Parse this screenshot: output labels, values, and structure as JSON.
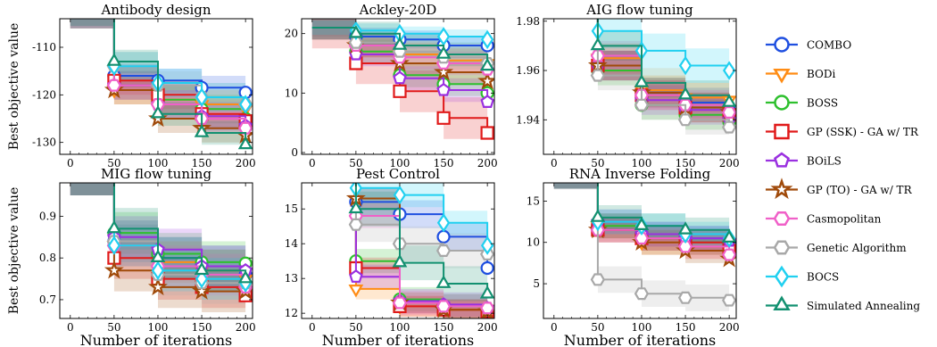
{
  "figure": {
    "xlabel": "Number of iterations",
    "ylabel": "Best objective value"
  },
  "legend": [
    {
      "name": "COMBO",
      "color": "#1f4fe0",
      "marker": "circle"
    },
    {
      "name": "BODi",
      "color": "#ff8c14",
      "marker": "triangle-down"
    },
    {
      "name": "BOSS",
      "color": "#2ec02e",
      "marker": "circle"
    },
    {
      "name": "GP (SSK) - GA w/ TR",
      "color": "#e01a1a",
      "marker": "square"
    },
    {
      "name": "BOiLS",
      "color": "#9a30e0",
      "marker": "pentagon"
    },
    {
      "name": "GP (TO) - GA w/ TR",
      "color": "#a04a0a",
      "marker": "star"
    },
    {
      "name": "Casmopolitan",
      "color": "#f060c8",
      "marker": "hexagon"
    },
    {
      "name": "Genetic Algorithm",
      "color": "#a8a8a8",
      "marker": "hexagon"
    },
    {
      "name": "BOCS",
      "color": "#20d0f0",
      "marker": "diamond"
    },
    {
      "name": "Simulated Annealing",
      "color": "#129070",
      "marker": "triangle-up"
    }
  ],
  "chart_data": [
    {
      "type": "line",
      "title": "Antibody design",
      "x": [
        0,
        50,
        100,
        150,
        200
      ],
      "xticks": [
        0,
        50,
        100,
        150,
        200
      ],
      "xlim": [
        -12,
        208
      ],
      "ylim": [
        -132.5,
        -104
      ],
      "yticks": [
        -110,
        -120,
        -130
      ],
      "show_ylabel": true,
      "series": [
        {
          "name": "COMBO",
          "values": [
            -103,
            -116,
            -117,
            -118.5,
            -119.5
          ],
          "band": 2.5
        },
        {
          "name": "BODi",
          "values": [
            -103,
            -119,
            -121,
            -122,
            -123
          ],
          "band": 3
        },
        {
          "name": "BOSS",
          "values": [
            -103,
            -118,
            -121,
            -123,
            -125
          ],
          "band": 3
        },
        {
          "name": "GP (SSK) - GA w/ TR",
          "values": [
            -103,
            -117,
            -120,
            -124,
            -125.5
          ],
          "band": 3
        },
        {
          "name": "BOiLS",
          "values": [
            -103,
            -118,
            -122,
            -124.5,
            -126.5
          ],
          "band": 3
        },
        {
          "name": "GP (TO) - GA w/ TR",
          "values": [
            -103,
            -119,
            -125,
            -127,
            -128.5
          ],
          "band": 3
        },
        {
          "name": "Casmopolitan",
          "values": [
            -103,
            -118,
            -122,
            -125,
            -127
          ],
          "band": 3
        },
        {
          "name": "Genetic Algorithm",
          "values": [
            -103,
            -114,
            -118,
            -120.5,
            -122
          ],
          "band": 3
        },
        {
          "name": "BOCS",
          "values": [
            -103,
            -114,
            -117.5,
            -120.5,
            -122
          ],
          "band": 3
        },
        {
          "name": "Simulated Annealing",
          "values": [
            -103,
            -113,
            -124,
            -128,
            -130.5
          ],
          "band": 2.5
        }
      ]
    },
    {
      "type": "line",
      "title": "Ackley-20D",
      "x": [
        0,
        50,
        100,
        150,
        200
      ],
      "xticks": [
        0,
        50,
        100,
        150,
        200
      ],
      "xlim": [
        -12,
        208
      ],
      "ylim": [
        -0.3,
        22.5
      ],
      "yticks": [
        0,
        10,
        20
      ],
      "show_ylabel": false,
      "series": [
        {
          "name": "COMBO",
          "values": [
            21,
            19.5,
            19,
            18,
            18
          ],
          "band": 1.5
        },
        {
          "name": "BODi",
          "values": [
            21,
            18,
            16.5,
            15.5,
            15
          ],
          "band": 2
        },
        {
          "name": "BOSS",
          "values": [
            21,
            17,
            13,
            11.5,
            10
          ],
          "band": 2
        },
        {
          "name": "GP (SSK) - GA w/ TR",
          "values": [
            21,
            15,
            10.3,
            5.8,
            3.3
          ],
          "band": 3.5
        },
        {
          "name": "BOiLS",
          "values": [
            21,
            16.5,
            12.5,
            10.5,
            8.5
          ],
          "band": 2
        },
        {
          "name": "GP (TO) - GA w/ TR",
          "values": [
            21,
            18,
            15,
            13.5,
            12
          ],
          "band": 2
        },
        {
          "name": "Casmopolitan",
          "values": [
            21,
            18,
            16,
            15,
            14
          ],
          "band": 2
        },
        {
          "name": "Genetic Algorithm",
          "values": [
            21,
            18.5,
            17,
            16,
            15
          ],
          "band": 2
        },
        {
          "name": "BOCS",
          "values": [
            21,
            20.5,
            20,
            19.5,
            19
          ],
          "band": 1.2
        },
        {
          "name": "Simulated Annealing",
          "values": [
            21,
            20,
            18,
            16.5,
            14.5
          ],
          "band": 2
        }
      ]
    },
    {
      "type": "line",
      "title": "AIG flow tuning",
      "x": [
        0,
        50,
        100,
        150,
        200
      ],
      "xticks": [
        0,
        50,
        100,
        150,
        200
      ],
      "xlim": [
        -12,
        208
      ],
      "ylim": [
        1.926,
        1.981
      ],
      "yticks": [
        1.94,
        1.96,
        1.98
      ],
      "show_ylabel": false,
      "series": [
        {
          "name": "COMBO",
          "values": [
            1.995,
            1.962,
            1.951,
            1.947,
            1.944
          ],
          "band": 0.006
        },
        {
          "name": "BODi",
          "values": [
            1.995,
            1.965,
            1.952,
            1.949,
            1.948
          ],
          "band": 0.006
        },
        {
          "name": "BOSS",
          "values": [
            1.995,
            1.96,
            1.946,
            1.942,
            1.939
          ],
          "band": 0.006
        },
        {
          "name": "GP (SSK) - GA w/ TR",
          "values": [
            1.995,
            1.962,
            1.95,
            1.945,
            1.942
          ],
          "band": 0.006
        },
        {
          "name": "BOiLS",
          "values": [
            1.995,
            1.962,
            1.948,
            1.944,
            1.94
          ],
          "band": 0.006
        },
        {
          "name": "GP (TO) - GA w/ TR",
          "values": [
            1.995,
            1.962,
            1.951,
            1.945,
            1.943
          ],
          "band": 0.006
        },
        {
          "name": "Casmopolitan",
          "values": [
            1.995,
            1.966,
            1.95,
            1.946,
            1.943
          ],
          "band": 0.006
        },
        {
          "name": "Genetic Algorithm",
          "values": [
            1.995,
            1.958,
            1.946,
            1.94,
            1.937
          ],
          "band": 0.006
        },
        {
          "name": "BOCS",
          "values": [
            1.995,
            1.976,
            1.968,
            1.962,
            1.96
          ],
          "band": 0.007
        },
        {
          "name": "Simulated Annealing",
          "values": [
            1.995,
            1.97,
            1.955,
            1.95,
            1.947
          ],
          "band": 0.006
        }
      ]
    },
    {
      "type": "line",
      "title": "MIG flow tuning",
      "x": [
        0,
        50,
        100,
        150,
        200
      ],
      "xticks": [
        0,
        50,
        100,
        150,
        200
      ],
      "xlim": [
        -12,
        208
      ],
      "ylim": [
        0.655,
        0.98
      ],
      "yticks": [
        0.7,
        0.8,
        0.9
      ],
      "show_ylabel": true,
      "series": [
        {
          "name": "COMBO",
          "values": [
            1.0,
            0.84,
            0.8,
            0.78,
            0.76
          ],
          "band": 0.05
        },
        {
          "name": "BODi",
          "values": [
            1.0,
            0.83,
            0.79,
            0.77,
            0.75
          ],
          "band": 0.05
        },
        {
          "name": "BOSS",
          "values": [
            1.0,
            0.86,
            0.81,
            0.79,
            0.787
          ],
          "band": 0.05
        },
        {
          "name": "GP (SSK) - GA w/ TR",
          "values": [
            1.0,
            0.8,
            0.75,
            0.73,
            0.71
          ],
          "band": 0.05
        },
        {
          "name": "BOiLS",
          "values": [
            1.0,
            0.85,
            0.82,
            0.78,
            0.77
          ],
          "band": 0.05
        },
        {
          "name": "GP (TO) - GA w/ TR",
          "values": [
            1.0,
            0.77,
            0.73,
            0.72,
            0.72
          ],
          "band": 0.05
        },
        {
          "name": "Casmopolitan",
          "values": [
            1.0,
            0.83,
            0.78,
            0.76,
            0.73
          ],
          "band": 0.05
        },
        {
          "name": "Genetic Algorithm",
          "values": [
            1.0,
            0.84,
            0.76,
            0.74,
            0.74
          ],
          "band": 0.05
        },
        {
          "name": "BOCS",
          "values": [
            1.0,
            0.83,
            0.77,
            0.75,
            0.74
          ],
          "band": 0.05
        },
        {
          "name": "Simulated Annealing",
          "values": [
            1.0,
            0.87,
            0.8,
            0.77,
            0.75
          ],
          "band": 0.05
        }
      ]
    },
    {
      "type": "line",
      "title": "Pest Control",
      "x": [
        0,
        50,
        100,
        150,
        200
      ],
      "xticks": [
        0,
        50,
        100,
        150,
        200
      ],
      "xlim": [
        -12,
        208
      ],
      "ylim": [
        11.85,
        15.75
      ],
      "yticks": [
        12,
        13,
        14,
        15
      ],
      "show_ylabel": false,
      "series": [
        {
          "name": "COMBO",
          "values": [
            16.5,
            15.2,
            14.85,
            14.2,
            13.3
          ],
          "band": 0.4
        },
        {
          "name": "BODi",
          "values": [
            16.5,
            12.7,
            12.2,
            12.1,
            12.05
          ],
          "band": 0.3
        },
        {
          "name": "BOSS",
          "values": [
            16.5,
            13.5,
            12.4,
            12.2,
            12.1
          ],
          "band": 0.35
        },
        {
          "name": "GP (SSK) - GA w/ TR",
          "values": [
            16.5,
            13.3,
            12.2,
            12.1,
            12.05
          ],
          "band": 0.3
        },
        {
          "name": "BOiLS",
          "values": [
            16.5,
            13.05,
            12.35,
            12.25,
            12.15
          ],
          "band": 0.35
        },
        {
          "name": "GP (TO) - GA w/ TR",
          "values": [
            16.5,
            15.3,
            12.3,
            12.1,
            12.05
          ],
          "band": 0.3
        },
        {
          "name": "Casmopolitan",
          "values": [
            16.5,
            14.8,
            12.3,
            12.2,
            12.15
          ],
          "band": 0.35
        },
        {
          "name": "Genetic Algorithm",
          "values": [
            16.5,
            14.55,
            14.0,
            13.8,
            13.7
          ],
          "band": 0.5
        },
        {
          "name": "BOCS",
          "values": [
            16.5,
            15.6,
            15.4,
            14.6,
            13.95
          ],
          "band": 0.35
        },
        {
          "name": "Simulated Annealing",
          "values": [
            16.5,
            15.0,
            13.45,
            12.85,
            12.55
          ],
          "band": 0.5
        }
      ]
    },
    {
      "type": "line",
      "title": "RNA Inverse Folding",
      "x": [
        0,
        50,
        100,
        150,
        200
      ],
      "xticks": [
        0,
        50,
        100,
        150,
        200
      ],
      "xlim": [
        -12,
        208
      ],
      "ylim": [
        0.8,
        17.2
      ],
      "yticks": [
        5,
        10,
        15
      ],
      "show_ylabel": false,
      "series": [
        {
          "name": "COMBO",
          "values": [
            18,
            12,
            11,
            10.5,
            10
          ],
          "band": 1.5
        },
        {
          "name": "BODi",
          "values": [
            18,
            12,
            10,
            9.5,
            9
          ],
          "band": 1.5
        },
        {
          "name": "BOSS",
          "values": [
            18,
            12,
            10.5,
            10,
            9.5
          ],
          "band": 1.5
        },
        {
          "name": "GP (SSK) - GA w/ TR",
          "values": [
            18,
            11.5,
            10.5,
            10,
            9
          ],
          "band": 1.5
        },
        {
          "name": "BOiLS",
          "values": [
            18,
            12.5,
            11,
            10.5,
            10.2
          ],
          "band": 1.5
        },
        {
          "name": "GP (TO) - GA w/ TR",
          "values": [
            18,
            11.5,
            10,
            9,
            8
          ],
          "band": 1.5
        },
        {
          "name": "Casmopolitan",
          "values": [
            18,
            11.5,
            10.5,
            9.5,
            8.5
          ],
          "band": 1.5
        },
        {
          "name": "Genetic Algorithm",
          "values": [
            18,
            5.5,
            3.8,
            3.3,
            3.0
          ],
          "band": 1.6
        },
        {
          "name": "BOCS",
          "values": [
            18,
            12.5,
            12,
            11,
            10.5
          ],
          "band": 1.5
        },
        {
          "name": "Simulated Annealing",
          "values": [
            18,
            13,
            12,
            11.5,
            10.5
          ],
          "band": 1.5
        }
      ]
    }
  ]
}
